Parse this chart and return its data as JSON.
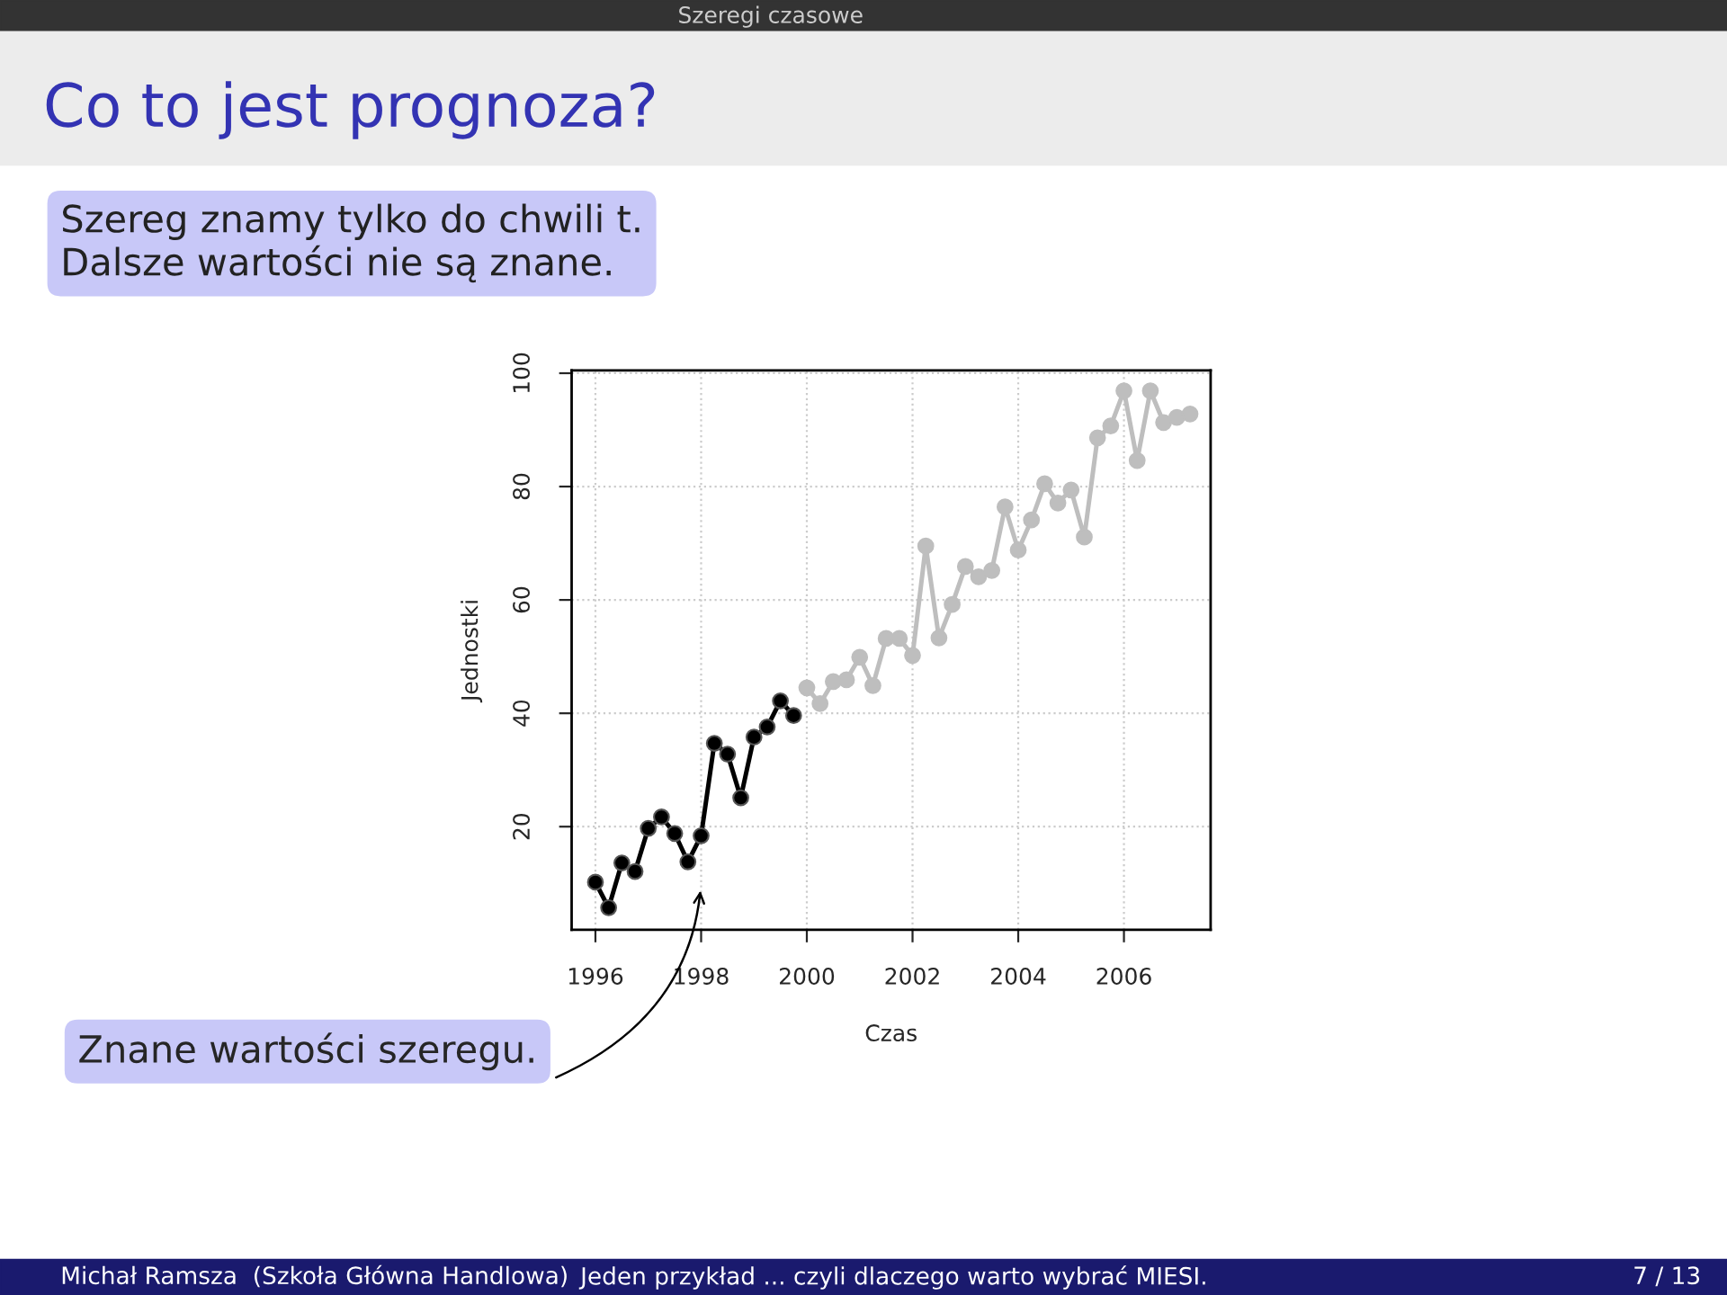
{
  "chart_data": {
    "type": "line",
    "title": "Co to jest prognoza?",
    "subtitle": "Szeregi czasowe",
    "xlabel": "Czas",
    "ylabel": "Jednostki",
    "series": [
      {
        "color": "#000000",
        "x": [
          1996.0,
          1996.25,
          1996.5,
          1996.75,
          1997.0,
          1997.25,
          1997.5,
          1997.75,
          1998.0,
          1998.25,
          1998.5,
          1998.75,
          1999.0,
          1999.25,
          1999.5,
          1999.75
        ],
        "values": [
          10.2,
          5.7,
          13.6,
          12.1,
          19.7,
          21.7,
          18.8,
          13.8,
          18.4,
          34.7,
          32.8,
          25.1,
          35.8,
          37.6,
          42.2,
          39.6
        ]
      },
      {
        "color": "#bebebe",
        "x": [
          2000.0,
          2000.25,
          2000.5,
          2000.75,
          2001.0,
          2001.25,
          2001.5,
          2001.75,
          2002.0,
          2002.25,
          2002.5,
          2002.75,
          2003.0,
          2003.25,
          2003.5,
          2003.75,
          2004.0,
          2004.25,
          2004.5,
          2004.75,
          2005.0,
          2005.25,
          2005.5,
          2005.75,
          2006.0,
          2006.25,
          2006.5,
          2006.75,
          2007.0,
          2007.25
        ],
        "values": [
          44.5,
          41.7,
          45.6,
          45.9,
          49.9,
          44.9,
          53.2,
          53.2,
          50.2,
          69.5,
          53.3,
          59.2,
          65.9,
          64.1,
          65.2,
          76.4,
          68.8,
          74.1,
          80.5,
          77.1,
          79.4,
          71.1,
          88.6,
          90.7,
          96.9,
          84.6,
          96.9,
          91.3,
          92.2,
          92.8
        ]
      }
    ],
    "xlim": [
      1995.55,
      2007.64
    ],
    "ylim": [
      1.8,
      100.5
    ],
    "xticks": [
      1996,
      1998,
      2000,
      2002,
      2004,
      2006
    ],
    "yticks": [
      20,
      40,
      60,
      80,
      100
    ],
    "grid": true,
    "marker": "circle",
    "line_style": "solid",
    "annotations": [
      "Szereg znamy tylko do chwili t.\nDalsze wartości nie są znane.",
      "Znane wartości szeregu.",
      "Michał Ramsza  (Szkoła Główna Handlowa)",
      "Jeden przykład ... czyli dlaczego warto wybrać MIESI.",
      "7 / 13"
    ]
  }
}
